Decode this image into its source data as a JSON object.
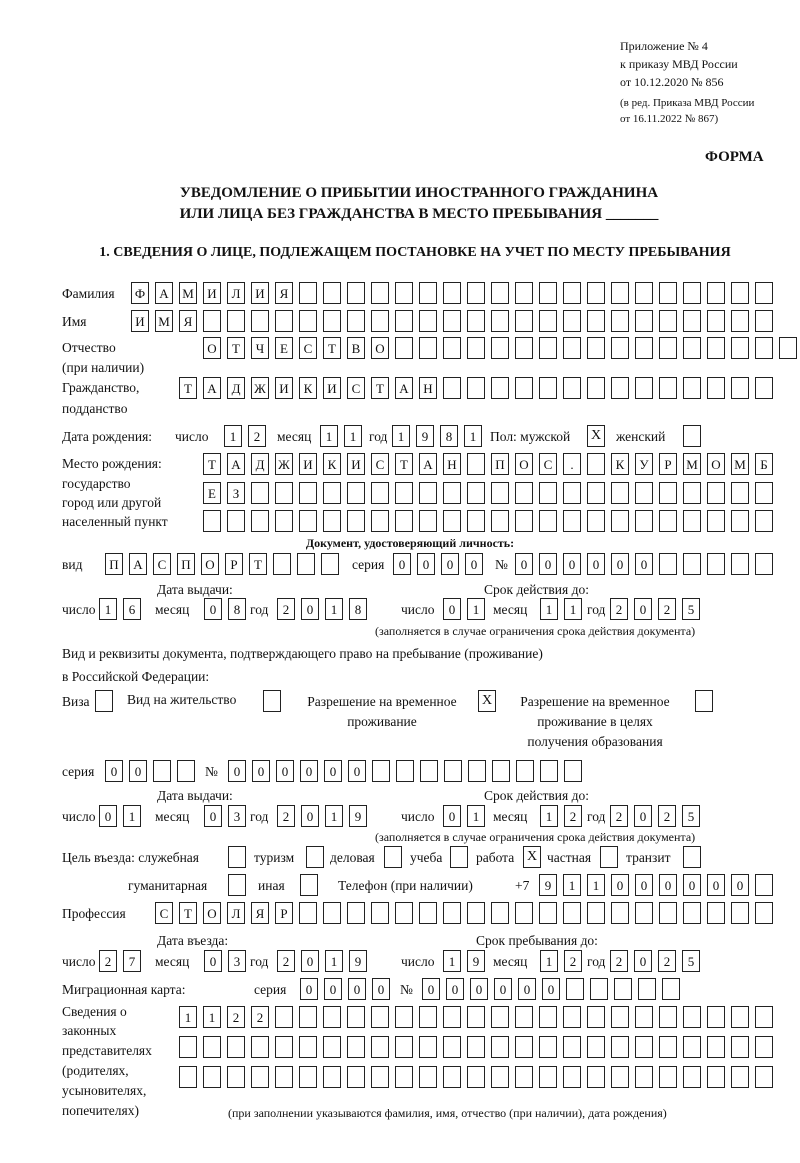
{
  "header": {
    "annex": [
      "Приложение № 4",
      "к приказу МВД России",
      "от 10.12.2020 № 856"
    ],
    "edition": [
      "(в ред. Приказа МВД России",
      "от 16.11.2022 № 867)"
    ],
    "form_label": "ФОРМА",
    "title_line1": "УВЕДОМЛЕНИЕ О ПРИБЫТИИ ИНОСТРАННОГО ГРАЖДАНИНА",
    "title_line2": "ИЛИ ЛИЦА БЕЗ ГРАЖДАНСТВА В МЕСТО ПРЕБЫВАНИЯ _______",
    "section1": "1. СВЕДЕНИЯ О ЛИЦЕ, ПОДЛЕЖАЩЕМ ПОСТАНОВКЕ НА УЧЕТ ПО МЕСТУ ПРЕБЫВАНИЯ"
  },
  "labels": {
    "surname": "Фамилия",
    "name": "Имя",
    "patronymic": "Отчество",
    "patronymic2": "(при наличии)",
    "citizenship": "Гражданство,",
    "citizenship2": "подданство",
    "dob": "Дата рождения:",
    "day": "число",
    "month": "месяц",
    "year": "год",
    "sex_male": "Пол: мужской",
    "sex_female": "женский",
    "birthplace": [
      "Место рождения:",
      "государство",
      "город или другой",
      "населенный пункт"
    ],
    "id_doc": "Документ, удостоверяющий личность:",
    "kind": "вид",
    "series": "серия",
    "number": "№",
    "issue_date": "Дата выдачи:",
    "valid_until": "Срок действия до:",
    "valid_note": "(заполняется в случае ограничения срока действия документа)",
    "right_doc1": "Вид и реквизиты документа, подтверждающего право на пребывание (проживание)",
    "right_doc2": "в Российской Федерации:",
    "visa": "Виза",
    "residence": "Вид на жительство",
    "trp": [
      "Разрешение на временное",
      "проживание"
    ],
    "trp_edu": [
      "Разрешение на временное",
      "проживание в целях",
      "получения образования"
    ],
    "purpose": "Цель въезда: служебная",
    "tourism": "туризм",
    "business": "деловая",
    "study": "учеба",
    "work": "работа",
    "private": "частная",
    "transit": "транзит",
    "humanitarian": "гуманитарная",
    "other": "иная",
    "phone": "Телефон (при наличии)",
    "phone_prefix": "+7",
    "profession": "Профессия",
    "entry_date": "Дата въезда:",
    "stay_until": "Срок пребывания до:",
    "migration_card": "Миграционная карта:",
    "representatives": [
      "Сведения о",
      "законных",
      "представителях",
      "(родителях,",
      "усыновителях,",
      "попечителях)"
    ],
    "rep_note": "(при заполнении указываются фамилия, имя, отчество (при наличии), дата рождения)"
  },
  "fields": {
    "surname": [
      "Ф",
      "А",
      "М",
      "И",
      "Л",
      "И",
      "Я",
      "",
      "",
      "",
      "",
      "",
      "",
      "",
      "",
      "",
      "",
      "",
      "",
      "",
      "",
      "",
      "",
      "",
      "",
      "",
      ""
    ],
    "name": [
      "И",
      "М",
      "Я",
      "",
      "",
      "",
      "",
      "",
      "",
      "",
      "",
      "",
      "",
      "",
      "",
      "",
      "",
      "",
      "",
      "",
      "",
      "",
      "",
      "",
      "",
      "",
      ""
    ],
    "patronymic": [
      "О",
      "Т",
      "Ч",
      "Е",
      "С",
      "Т",
      "В",
      "О",
      "",
      "",
      "",
      "",
      "",
      "",
      "",
      "",
      "",
      "",
      "",
      "",
      "",
      "",
      "",
      "",
      ""
    ],
    "citizenship": [
      "Т",
      "А",
      "Д",
      "Ж",
      "И",
      "К",
      "И",
      "С",
      "Т",
      "А",
      "Н",
      "",
      "",
      "",
      "",
      "",
      "",
      "",
      "",
      "",
      "",
      "",
      "",
      "",
      ""
    ],
    "dob_day": [
      "1",
      "2"
    ],
    "dob_month": [
      "1",
      "1"
    ],
    "dob_year": [
      "1",
      "9",
      "8",
      "1"
    ],
    "sex_male": "X",
    "sex_female": "",
    "birthplace1": [
      "Т",
      "А",
      "Д",
      "Ж",
      "И",
      "К",
      "И",
      "С",
      "Т",
      "А",
      "Н",
      "",
      "П",
      "О",
      "С",
      ".",
      "",
      "К",
      "У",
      "Р",
      "М",
      "О",
      "М",
      "Б"
    ],
    "birthplace2": [
      "Е",
      "З",
      "",
      "",
      "",
      "",
      "",
      "",
      "",
      "",
      "",
      "",
      "",
      "",
      "",
      "",
      "",
      "",
      "",
      "",
      "",
      "",
      "",
      ""
    ],
    "birthplace3": [
      "",
      "",
      "",
      "",
      "",
      "",
      "",
      "",
      "",
      "",
      "",
      "",
      "",
      "",
      "",
      "",
      "",
      "",
      "",
      "",
      "",
      "",
      "",
      ""
    ],
    "id_kind": [
      "П",
      "А",
      "С",
      "П",
      "О",
      "Р",
      "Т",
      "",
      "",
      ""
    ],
    "id_series": [
      "0",
      "0",
      "0",
      "0"
    ],
    "id_number": [
      "0",
      "0",
      "0",
      "0",
      "0",
      "0",
      "",
      "",
      "",
      "",
      ""
    ],
    "id_issue": {
      "day": [
        "1",
        "6"
      ],
      "month": [
        "0",
        "8"
      ],
      "year": [
        "2",
        "0",
        "1",
        "8"
      ]
    },
    "id_valid": {
      "day": [
        "0",
        "1"
      ],
      "month": [
        "1",
        "1"
      ],
      "year": [
        "2",
        "0",
        "2",
        "5"
      ]
    },
    "visa": "",
    "residence": "",
    "trp": "X",
    "trp_edu": "",
    "rd_series": [
      "0",
      "0",
      "",
      ""
    ],
    "rd_number": [
      "0",
      "0",
      "0",
      "0",
      "0",
      "0",
      "",
      "",
      "",
      "",
      "",
      "",
      "",
      "",
      ""
    ],
    "rd_issue": {
      "day": [
        "0",
        "1"
      ],
      "month": [
        "0",
        "3"
      ],
      "year": [
        "2",
        "0",
        "1",
        "9"
      ]
    },
    "rd_valid": {
      "day": [
        "0",
        "1"
      ],
      "month": [
        "1",
        "2"
      ],
      "year": [
        "2",
        "0",
        "2",
        "5"
      ]
    },
    "purpose": {
      "service": "",
      "tourism": "",
      "business": "",
      "study": "",
      "work": "X",
      "private": "",
      "transit": "",
      "humanitarian": "",
      "other": ""
    },
    "phone": [
      "9",
      "1",
      "1",
      "0",
      "0",
      "0",
      "0",
      "0",
      "0",
      ""
    ],
    "profession": [
      "С",
      "Т",
      "О",
      "Л",
      "Я",
      "Р",
      "",
      "",
      "",
      "",
      "",
      "",
      "",
      "",
      "",
      "",
      "",
      "",
      "",
      "",
      "",
      "",
      "",
      "",
      "",
      ""
    ],
    "entry": {
      "day": [
        "2",
        "7"
      ],
      "month": [
        "0",
        "3"
      ],
      "year": [
        "2",
        "0",
        "1",
        "9"
      ]
    },
    "stay": {
      "day": [
        "1",
        "9"
      ],
      "month": [
        "1",
        "2"
      ],
      "year": [
        "2",
        "0",
        "2",
        "5"
      ]
    },
    "mc_series": [
      "0",
      "0",
      "0",
      "0"
    ],
    "mc_number": [
      "0",
      "0",
      "0",
      "0",
      "0",
      "0",
      "",
      "",
      "",
      "",
      ""
    ],
    "rep1": [
      "1",
      "1",
      "2",
      "2",
      "",
      "",
      "",
      "",
      "",
      "",
      "",
      "",
      "",
      "",
      "",
      "",
      "",
      "",
      "",
      "",
      "",
      "",
      "",
      "",
      ""
    ],
    "rep2": [
      "",
      "",
      "",
      "",
      "",
      "",
      "",
      "",
      "",
      "",
      "",
      "",
      "",
      "",
      "",
      "",
      "",
      "",
      "",
      "",
      "",
      "",
      "",
      "",
      ""
    ],
    "rep3": [
      "",
      "",
      "",
      "",
      "",
      "",
      "",
      "",
      "",
      "",
      "",
      "",
      "",
      "",
      "",
      "",
      "",
      "",
      "",
      "",
      "",
      "",
      "",
      "",
      ""
    ]
  }
}
